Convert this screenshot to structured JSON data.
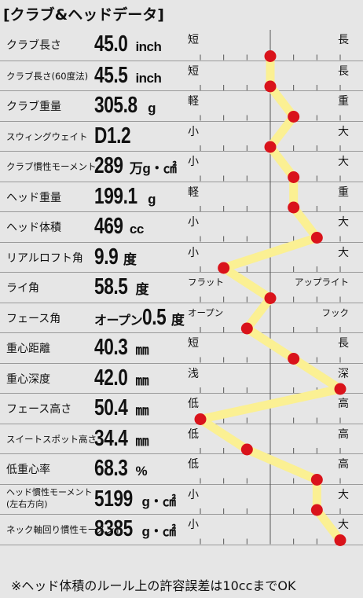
{
  "title": "[クラブ&ヘッドデータ]",
  "footnote": "※ヘッド体積のルール上の許容誤差は10ccまでOK",
  "colors": {
    "line": "#fbf093",
    "marker": "#d9131b",
    "rule": "#9a9a9a",
    "axis": "#555555"
  },
  "rows": [
    {
      "label": "クラブ長さ",
      "value": "45.0",
      "unit": "inch",
      "left": "短",
      "right": "長",
      "level": 0
    },
    {
      "label": "クラブ長さ(60度法)",
      "value": "45.5",
      "unit": "inch",
      "left": "短",
      "right": "長",
      "level": 0
    },
    {
      "label": "クラブ重量",
      "value": "305.8",
      "unit": "g",
      "left": "軽",
      "right": "重",
      "level": 1
    },
    {
      "label": "スウィングウェイト",
      "value": "D1.2",
      "unit": "",
      "left": "小",
      "right": "大",
      "level": 0
    },
    {
      "label": "クラブ慣性モーメント",
      "value": "289",
      "unit": "万g・㎠",
      "left": "小",
      "right": "大",
      "level": 1
    },
    {
      "label": "ヘッド重量",
      "value": "199.1",
      "unit": "g",
      "left": "軽",
      "right": "重",
      "level": 1
    },
    {
      "label": "ヘッド体積",
      "value": "469",
      "unit": "cc",
      "left": "小",
      "right": "大",
      "level": 2
    },
    {
      "label": "リアルロフト角",
      "value": "9.9",
      "unit": "度",
      "left": "小",
      "right": "大",
      "level": -2
    },
    {
      "label": "ライ角",
      "value": "58.5",
      "unit": "度",
      "left": "フラット",
      "right": "アップライト",
      "level": 0
    },
    {
      "label": "フェース角",
      "pre": "オープン",
      "value": "0.5",
      "unit": "度",
      "left": "オープン",
      "right": "フック",
      "level": -1
    },
    {
      "label": "重心距離",
      "value": "40.3",
      "unit": "㎜",
      "left": "短",
      "right": "長",
      "level": 1
    },
    {
      "label": "重心深度",
      "value": "42.0",
      "unit": "㎜",
      "left": "浅",
      "right": "深",
      "level": 3
    },
    {
      "label": "フェース高さ",
      "value": "50.4",
      "unit": "㎜",
      "left": "低",
      "right": "高",
      "level": -3
    },
    {
      "label": "スイートスポット高さ",
      "value": "34.4",
      "unit": "㎜",
      "left": "低",
      "right": "高",
      "level": -1
    },
    {
      "label": "低重心率",
      "value": "68.3",
      "unit": "%",
      "left": "低",
      "right": "高",
      "level": 2
    },
    {
      "label": "ヘッド慣性モーメント\n(左右方向)",
      "value": "5199",
      "unit": "g・㎠",
      "left": "小",
      "right": "大",
      "level": 2
    },
    {
      "label": "ネック軸回り慣性モーメント",
      "value": "8385",
      "unit": "g・㎠",
      "left": "小",
      "right": "大",
      "level": 3
    }
  ],
  "chart_data": {
    "type": "line",
    "categories": [
      "クラブ長さ",
      "クラブ長さ(60度法)",
      "クラブ重量",
      "スウィングウェイト",
      "クラブ慣性モーメント",
      "ヘッド重量",
      "ヘッド体積",
      "リアルロフト角",
      "ライ角",
      "フェース角",
      "重心距離",
      "重心深度",
      "フェース高さ",
      "スイートスポット高さ",
      "低重心率",
      "ヘッド慣性モーメント(左右方向)",
      "ネック軸回り慣性モーメント"
    ],
    "values": [
      0,
      0,
      1,
      0,
      1,
      1,
      2,
      -2,
      0,
      -1,
      1,
      3,
      -3,
      -1,
      2,
      2,
      3
    ],
    "xlim": [
      -3,
      3
    ],
    "orientation": "horizontal-levels",
    "grid": true
  }
}
